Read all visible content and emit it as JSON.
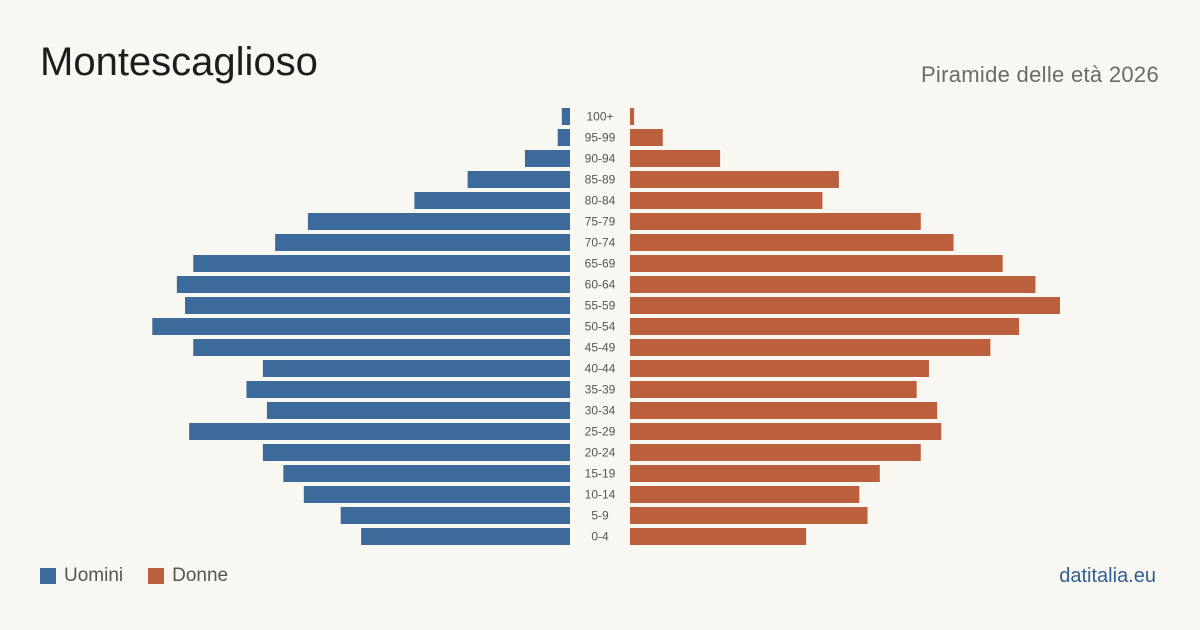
{
  "header": {
    "title": "Montescaglioso",
    "subtitle": "Piramide delle età 2026"
  },
  "colors": {
    "male": "#3b6a9b",
    "female": "#bb5f3c",
    "brand": "#2f5f92",
    "background": "#f9f7f2"
  },
  "legend": {
    "male_label": "Uomini",
    "female_label": "Donne"
  },
  "footer": {
    "brand": "datitalia.eu"
  },
  "chart_data": {
    "type": "bar",
    "orientation": "horizontal-pyramid",
    "categories": [
      "100+",
      "95-99",
      "90-94",
      "85-89",
      "80-84",
      "75-79",
      "70-74",
      "65-69",
      "60-64",
      "55-59",
      "50-54",
      "45-49",
      "40-44",
      "35-39",
      "30-34",
      "25-29",
      "20-24",
      "15-19",
      "10-14",
      "5-9",
      "0-4"
    ],
    "series": [
      {
        "name": "Uomini",
        "values": [
          2,
          3,
          11,
          25,
          38,
          64,
          72,
          92,
          96,
          94,
          102,
          92,
          75,
          79,
          74,
          93,
          75,
          70,
          65,
          56,
          51
        ]
      },
      {
        "name": "Donne",
        "values": [
          1,
          8,
          22,
          51,
          47,
          71,
          79,
          91,
          99,
          105,
          95,
          88,
          73,
          70,
          75,
          76,
          71,
          61,
          56,
          58,
          43
        ]
      }
    ],
    "xlim": [
      0,
      105
    ],
    "grid": false,
    "legend_position": "bottom-left"
  }
}
